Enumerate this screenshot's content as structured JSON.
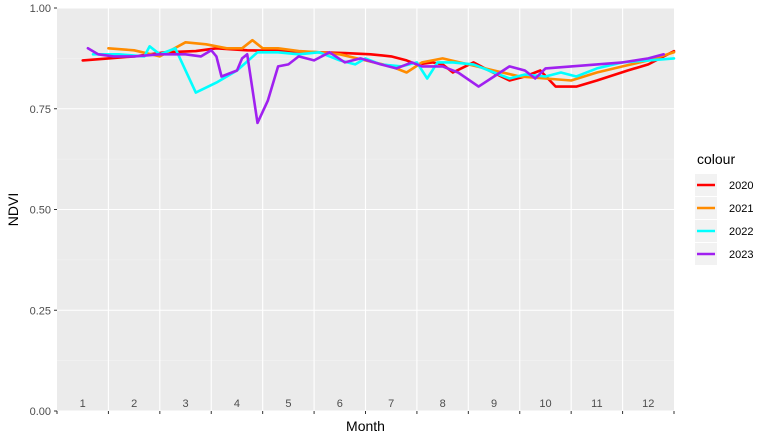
{
  "chart_data": {
    "type": "line",
    "xlabel": "Month",
    "ylabel": "NDVI",
    "ylim": [
      0,
      1
    ],
    "xlim": [
      0.5,
      12.5
    ],
    "y_ticks": [
      "0.00",
      "0.25",
      "0.50",
      "0.75",
      "1.00"
    ],
    "y_tick_values": [
      0,
      0.25,
      0.5,
      0.75,
      1
    ],
    "x_tick_labels": [
      "1",
      "2",
      "3",
      "4",
      "5",
      "6",
      "7",
      "8",
      "9",
      "10",
      "11",
      "12"
    ],
    "grid": true,
    "legend": {
      "title": "colour",
      "position": "right"
    },
    "series": [
      {
        "name": "2020",
        "color": "#FF0000",
        "x": [
          1,
          1.5,
          2,
          2.6,
          3.2,
          3.6,
          4.2,
          5,
          5.6,
          6.1,
          6.6,
          7,
          7.3,
          7.5,
          7.8,
          8,
          8.2,
          8.6,
          8.9,
          9.3,
          9.6,
          9.9,
          10.2,
          10.6,
          11,
          11.6,
          12,
          12.5
        ],
        "y": [
          0.87,
          0.875,
          0.88,
          0.89,
          0.893,
          0.9,
          0.895,
          0.893,
          0.89,
          0.888,
          0.885,
          0.88,
          0.87,
          0.86,
          0.865,
          0.86,
          0.84,
          0.865,
          0.845,
          0.82,
          0.83,
          0.845,
          0.805,
          0.805,
          0.82,
          0.845,
          0.86,
          0.893
        ]
      },
      {
        "name": "2021",
        "color": "#FF8C00",
        "x": [
          1.5,
          2,
          2.5,
          3,
          3.4,
          3.8,
          4.1,
          4.3,
          4.5,
          4.8,
          5.2,
          5.6,
          6,
          6.5,
          7,
          7.3,
          7.6,
          8,
          8.5,
          9,
          9.5,
          10,
          10.5,
          11,
          11.5,
          12,
          12.5
        ],
        "y": [
          0.9,
          0.895,
          0.88,
          0.915,
          0.91,
          0.9,
          0.9,
          0.92,
          0.9,
          0.9,
          0.893,
          0.89,
          0.885,
          0.87,
          0.855,
          0.84,
          0.865,
          0.875,
          0.86,
          0.845,
          0.83,
          0.825,
          0.82,
          0.84,
          0.855,
          0.87,
          0.89
        ]
      },
      {
        "name": "2022",
        "color": "#00FFFF",
        "x": [
          1.2,
          1.7,
          2.2,
          2.3,
          2.5,
          2.8,
          3.2,
          3.6,
          4,
          4.4,
          4.8,
          5.2,
          5.6,
          6,
          6.3,
          6.5,
          6.8,
          7.2,
          7.5,
          7.7,
          7.9,
          8.2,
          8.6,
          9,
          9.3,
          9.6,
          10,
          10.3,
          10.6,
          11,
          11.5,
          12,
          12.5
        ],
        "y": [
          0.885,
          0.885,
          0.88,
          0.905,
          0.885,
          0.9,
          0.79,
          0.815,
          0.845,
          0.89,
          0.89,
          0.885,
          0.89,
          0.87,
          0.86,
          0.875,
          0.86,
          0.855,
          0.865,
          0.825,
          0.865,
          0.865,
          0.86,
          0.84,
          0.825,
          0.835,
          0.83,
          0.84,
          0.83,
          0.85,
          0.865,
          0.87,
          0.875
        ]
      },
      {
        "name": "2023",
        "color": "#A020F0",
        "x": [
          1.1,
          1.3,
          1.6,
          2,
          2.5,
          3,
          3.3,
          3.5,
          3.6,
          3.7,
          4,
          4.1,
          4.2,
          4.4,
          4.6,
          4.8,
          5,
          5.2,
          5.5,
          5.8,
          6.1,
          6.4,
          6.8,
          7.1,
          7.4,
          7.6,
          8,
          8.3,
          8.7,
          9,
          9.3,
          9.6,
          9.8,
          10,
          10.5,
          11,
          11.5,
          12,
          12.3
        ],
        "y": [
          0.9,
          0.885,
          0.88,
          0.88,
          0.885,
          0.885,
          0.88,
          0.895,
          0.88,
          0.83,
          0.845,
          0.875,
          0.885,
          0.715,
          0.77,
          0.855,
          0.86,
          0.88,
          0.87,
          0.89,
          0.865,
          0.875,
          0.86,
          0.85,
          0.865,
          0.855,
          0.855,
          0.84,
          0.805,
          0.83,
          0.855,
          0.845,
          0.825,
          0.85,
          0.855,
          0.86,
          0.865,
          0.875,
          0.885
        ]
      }
    ]
  }
}
